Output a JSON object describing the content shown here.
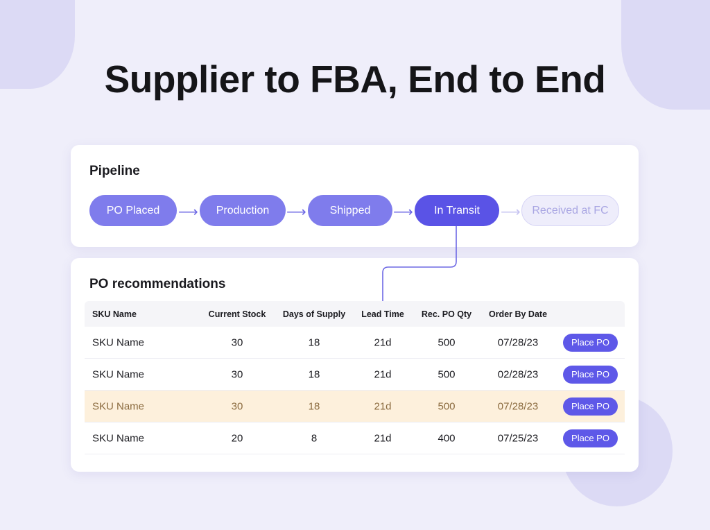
{
  "title": "Supplier to FBA, End to End",
  "pipeline": {
    "heading": "Pipeline",
    "stages": [
      "PO Placed",
      "Production",
      "Shipped",
      "In Transit",
      "Received at FC"
    ],
    "active_stage": "In Transit"
  },
  "po": {
    "heading": "PO recommendations",
    "columns": [
      "SKU Name",
      "Current Stock",
      "Days of Supply",
      "Lead Time",
      "Rec. PO Qty",
      "Order By Date"
    ],
    "rows": [
      {
        "sku": "SKU Name",
        "stock": "30",
        "days": "18",
        "lead": "21d",
        "qty": "500",
        "date": "07/28/23",
        "action": "Place PO"
      },
      {
        "sku": "SKU Name",
        "stock": "30",
        "days": "18",
        "lead": "21d",
        "qty": "500",
        "date": "02/28/23",
        "action": "Place PO"
      },
      {
        "sku": "SKU Name",
        "stock": "30",
        "days": "18",
        "lead": "21d",
        "qty": "500",
        "date": "07/28/23",
        "action": "Place PO",
        "highlighted": true
      },
      {
        "sku": "SKU Name",
        "stock": "20",
        "days": "8",
        "lead": "21d",
        "qty": "400",
        "date": "07/25/23",
        "action": "Place PO"
      }
    ]
  },
  "colors": {
    "accent": "#5e58e8",
    "stage": "#7f7cec",
    "highlight_row": "#fdf0dc",
    "background": "#efeefa"
  }
}
